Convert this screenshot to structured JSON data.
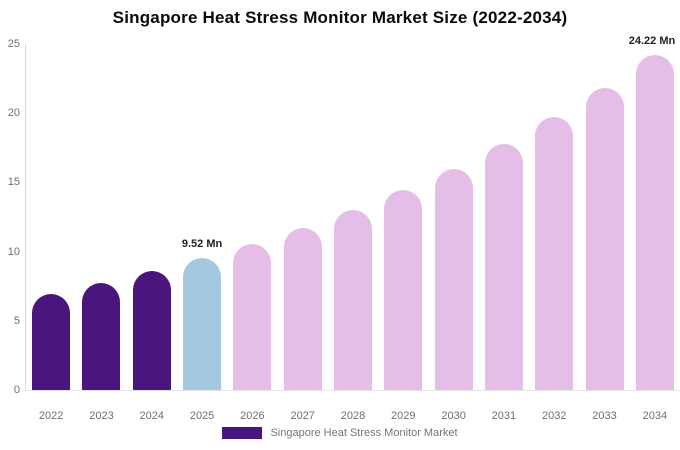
{
  "title": "Singapore Heat Stress Monitor Market Size (2022-2034)",
  "legend": {
    "label": "Singapore Heat Stress Monitor Market",
    "swatch_color": "#4b157e"
  },
  "colors": {
    "historical_bar": "#4b157e",
    "current_year_bar": "#a3c8df",
    "forecast_bar": "#e5bee7",
    "axis_line": "#d8d8d8",
    "baseline": "#e4e4e4",
    "tick_text": "#6f6f6f",
    "annotation_text": "#1f1f1f"
  },
  "chart_data": {
    "type": "bar",
    "title": "Singapore Heat Stress Monitor Market Size (2022-2034)",
    "xlabel": "",
    "ylabel": "",
    "categories": [
      "2022",
      "2023",
      "2024",
      "2025",
      "2026",
      "2027",
      "2028",
      "2029",
      "2030",
      "2031",
      "2032",
      "2033",
      "2034"
    ],
    "values": [
      6.97,
      7.73,
      8.58,
      9.52,
      10.56,
      11.72,
      13.0,
      14.42,
      16.0,
      17.75,
      19.69,
      21.84,
      24.22
    ],
    "bar_colors": [
      "#4b157e",
      "#4b157e",
      "#4b157e",
      "#a3c8df",
      "#e5bee7",
      "#e5bee7",
      "#e5bee7",
      "#e5bee7",
      "#e5bee7",
      "#e5bee7",
      "#e5bee7",
      "#e5bee7",
      "#e5bee7"
    ],
    "annotations": [
      {
        "index": 3,
        "text": "9.52 Mn"
      },
      {
        "index": 12,
        "text": "24.22 Mn"
      }
    ],
    "ylim": [
      0,
      25
    ],
    "yticks": [
      0,
      5,
      10,
      15,
      20,
      25
    ],
    "grid": false,
    "legend_position": "bottom",
    "legend_entries": [
      "Singapore Heat Stress Monitor Market"
    ],
    "unit": "Mn"
  }
}
